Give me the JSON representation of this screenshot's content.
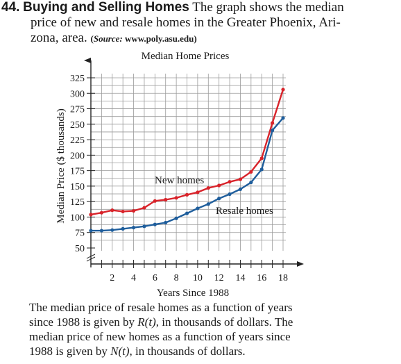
{
  "problem": {
    "number": "44.",
    "heading": "Buying and Selling Homes",
    "text_line1": "The graph shows the median",
    "text_line2": "price of new and resale homes in the Greater Phoenix, Ari-",
    "text_line3": "zona, area.",
    "source_label": "Source:",
    "source_url": "www.poly.asu.edu"
  },
  "footer": {
    "line1": "The median price of resale homes as a function of years",
    "line2_a": "since 1988 is given by ",
    "line2_fn": "R(t)",
    "line2_b": ", in thousands of dollars. The",
    "line3": "median price of new homes as a function of years since",
    "line4_a": "1988 is given by ",
    "line4_fn": "N(t)",
    "line4_b": ", in thousands of dollars."
  },
  "colors": {
    "new_homes": "#d8232a",
    "resale_homes": "#1f5e9c",
    "grid": "#9a9a9a",
    "axis": "#222222"
  },
  "chart_data": {
    "type": "line",
    "title": "Median Home Prices",
    "xlabel": "Years Since 1988",
    "ylabel": "Median Price ($ thousands)",
    "xlim": [
      0,
      18
    ],
    "ylim": [
      50,
      325
    ],
    "x_ticks": [
      2,
      4,
      6,
      8,
      10,
      12,
      14,
      16,
      18
    ],
    "y_ticks": [
      50,
      75,
      100,
      125,
      150,
      175,
      200,
      225,
      250,
      275,
      300,
      325
    ],
    "grid": true,
    "x": [
      0,
      1,
      2,
      3,
      4,
      5,
      6,
      7,
      8,
      9,
      10,
      11,
      12,
      13,
      14,
      15,
      16,
      17,
      18
    ],
    "series": [
      {
        "name": "New homes",
        "color": "#d8232a",
        "values": [
          104,
          107,
          111,
          109,
          110,
          115,
          126,
          128,
          131,
          136,
          140,
          147,
          151,
          157,
          161,
          173,
          195,
          252,
          306
        ]
      },
      {
        "name": "Resale homes",
        "color": "#1f5e9c",
        "values": [
          78,
          78,
          79,
          81,
          83,
          85,
          88,
          91,
          98,
          106,
          114,
          121,
          130,
          137,
          145,
          156,
          177,
          240,
          260
        ]
      }
    ]
  }
}
